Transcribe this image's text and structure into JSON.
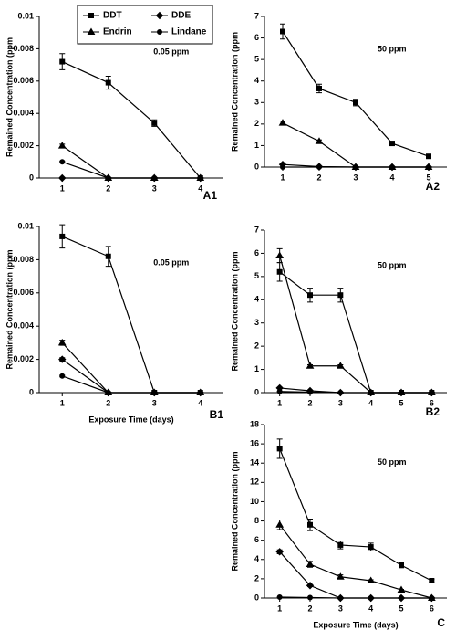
{
  "chart_data": [
    {
      "type": "line",
      "title": "A1",
      "annotation": "0.05  ppm",
      "y_label": "Remained Concentration (ppm",
      "categories": [
        "1",
        "2",
        "3",
        "4"
      ],
      "ylim": [
        0,
        0.01
      ],
      "yticks": [
        0,
        0.002,
        0.004,
        0.006,
        0.008,
        0.01
      ],
      "legend": "top",
      "series": [
        {
          "name": "DDT",
          "marker": "square",
          "color": "#000000",
          "values": [
            0.0072,
            0.0059,
            0.0034,
            0
          ],
          "errors": [
            0.0005,
            0.0004,
            0.0002,
            0
          ]
        },
        {
          "name": "DDE",
          "marker": "diamond",
          "color": "#000000",
          "values": [
            0,
            0,
            0,
            0
          ],
          "errors": [
            0,
            0,
            0,
            0
          ]
        },
        {
          "name": "Endrin",
          "marker": "triangle",
          "color": "#000000",
          "values": [
            0.002,
            0,
            0,
            0
          ],
          "errors": [
            0.0001,
            0,
            0,
            0
          ]
        },
        {
          "name": "Lindane",
          "marker": "circle",
          "color": "#000000",
          "values": [
            0.001,
            0,
            0,
            0
          ],
          "errors": [
            5e-05,
            0,
            0,
            0
          ]
        }
      ]
    },
    {
      "type": "line",
      "title": "A2",
      "annotation": "50  ppm",
      "y_label": "Remained Concentration (ppm",
      "categories": [
        "1",
        "2",
        "3",
        "4",
        "5"
      ],
      "ylim": [
        0,
        7
      ],
      "yticks": [
        0,
        1,
        2,
        3,
        4,
        5,
        6,
        7
      ],
      "series": [
        {
          "marker": "square",
          "color": "#000000",
          "values": [
            6.3,
            3.65,
            3.0,
            1.1,
            0.5
          ],
          "errors": [
            0.35,
            0.2,
            0.15,
            0.07,
            0.04
          ]
        },
        {
          "marker": "triangle",
          "color": "#000000",
          "values": [
            2.05,
            1.2,
            0,
            0,
            0
          ],
          "errors": [
            0.08,
            0.06,
            0,
            0,
            0
          ]
        },
        {
          "marker": "diamond",
          "color": "#000000",
          "values": [
            0.12,
            0.02,
            0,
            0,
            0
          ],
          "errors": [
            0.02,
            0,
            0,
            0,
            0
          ]
        },
        {
          "marker": "circle",
          "color": "#000000",
          "values": [
            0,
            0,
            0,
            0,
            0
          ],
          "errors": [
            0,
            0,
            0,
            0,
            0
          ]
        }
      ]
    },
    {
      "type": "line",
      "title": "B1",
      "annotation": "0.05  ppm",
      "y_label": "Remained Concentration (ppm",
      "x_label": "Exposure Time (days)",
      "categories": [
        "1",
        "2",
        "3",
        "4"
      ],
      "ylim": [
        0,
        0.01
      ],
      "yticks": [
        0,
        0.002,
        0.004,
        0.006,
        0.008,
        0.01
      ],
      "series": [
        {
          "marker": "square",
          "color": "#000000",
          "values": [
            0.0094,
            0.0082,
            0,
            0
          ],
          "errors": [
            0.0007,
            0.0006,
            0,
            0
          ]
        },
        {
          "marker": "triangle",
          "color": "#000000",
          "values": [
            0.003,
            0,
            0,
            0
          ],
          "errors": [
            0.00015,
            0,
            0,
            0
          ]
        },
        {
          "marker": "diamond",
          "color": "#000000",
          "values": [
            0.002,
            0,
            0,
            0
          ],
          "errors": [
            0.0001,
            0,
            0,
            0
          ]
        },
        {
          "marker": "circle",
          "color": "#000000",
          "values": [
            0.001,
            0,
            0,
            0
          ],
          "errors": [
            5e-05,
            0,
            0,
            0
          ]
        }
      ]
    },
    {
      "type": "line",
      "title": "B2",
      "annotation": "50  ppm",
      "y_label": "Remained Concentration (ppm",
      "categories": [
        "1",
        "2",
        "3",
        "4",
        "5",
        "6"
      ],
      "ylim": [
        0,
        7
      ],
      "yticks": [
        0,
        1,
        2,
        3,
        4,
        5,
        6,
        7
      ],
      "series": [
        {
          "marker": "triangle",
          "color": "#000000",
          "values": [
            5.9,
            1.15,
            1.15,
            0,
            0,
            0
          ],
          "errors": [
            0.3,
            0.05,
            0.05,
            0,
            0,
            0
          ]
        },
        {
          "marker": "square",
          "color": "#000000",
          "values": [
            5.2,
            4.2,
            4.2,
            0,
            0,
            0
          ],
          "errors": [
            0.4,
            0.3,
            0.3,
            0,
            0,
            0
          ]
        },
        {
          "marker": "diamond",
          "color": "#000000",
          "values": [
            0.2,
            0.08,
            0,
            0,
            0,
            0
          ],
          "errors": [
            0.02,
            0,
            0,
            0,
            0,
            0
          ]
        },
        {
          "marker": "circle",
          "color": "#000000",
          "values": [
            0.05,
            0.02,
            0,
            0,
            0,
            0
          ],
          "errors": [
            0,
            0,
            0,
            0,
            0,
            0
          ]
        }
      ]
    },
    {
      "type": "line",
      "title": "C",
      "annotation": "50  ppm",
      "y_label": "Remained Concentration (ppm",
      "x_label": "Exposure Time (days)",
      "categories": [
        "1",
        "2",
        "3",
        "4",
        "5",
        "6"
      ],
      "ylim": [
        0,
        18
      ],
      "yticks": [
        0,
        2,
        4,
        6,
        8,
        10,
        12,
        14,
        16,
        18
      ],
      "series": [
        {
          "marker": "square",
          "color": "#000000",
          "values": [
            15.5,
            7.6,
            5.5,
            5.3,
            3.4,
            1.8
          ],
          "errors": [
            1.0,
            0.6,
            0.4,
            0.4,
            0.25,
            0.15
          ]
        },
        {
          "marker": "triangle",
          "color": "#000000",
          "values": [
            7.6,
            3.5,
            2.2,
            1.8,
            0.85,
            0
          ],
          "errors": [
            0.5,
            0.3,
            0.2,
            0.1,
            0.05,
            0
          ]
        },
        {
          "marker": "diamond",
          "color": "#000000",
          "values": [
            4.8,
            1.3,
            0,
            0,
            0,
            0
          ],
          "errors": [
            0.2,
            0.1,
            0,
            0,
            0,
            0
          ]
        },
        {
          "marker": "circle",
          "color": "#000000",
          "values": [
            0.1,
            0.05,
            0,
            0,
            0,
            0
          ],
          "errors": [
            0,
            0,
            0,
            0,
            0,
            0
          ]
        }
      ]
    }
  ]
}
